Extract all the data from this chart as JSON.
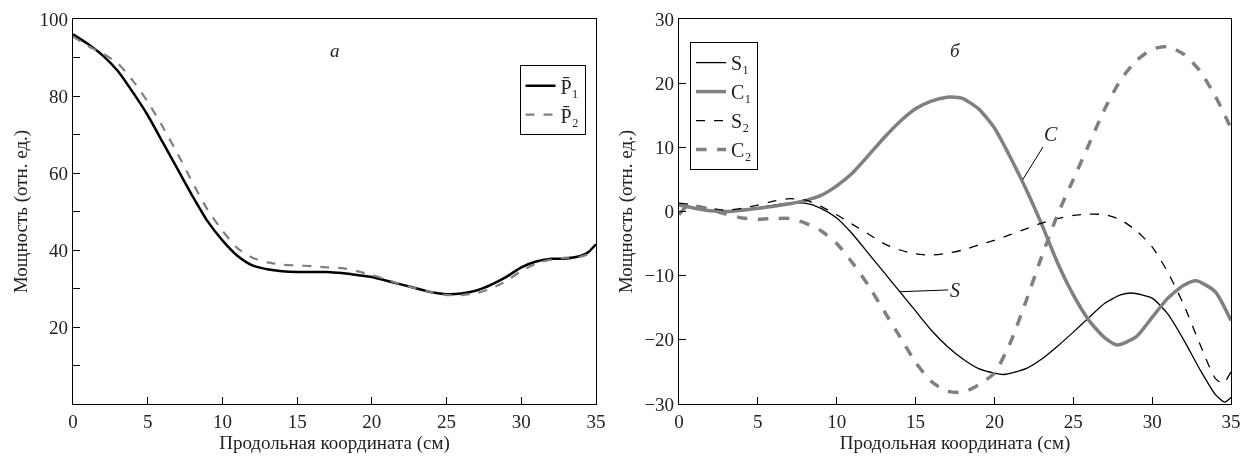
{
  "chart_data": [
    {
      "type": "line",
      "title": "а",
      "xlabel": "Продольная координата (см)",
      "ylabel": "Мощность (отн. ед.)",
      "xlim": [
        0,
        35
      ],
      "ylim": [
        0,
        100
      ],
      "xticks": [
        0,
        5,
        10,
        15,
        20,
        25,
        30,
        35
      ],
      "yticks": [
        {
          "value": 10,
          "label": null
        },
        20,
        {
          "value": 30,
          "label": null
        },
        40,
        {
          "value": 50,
          "label": null
        },
        60,
        {
          "value": 70,
          "label": null
        },
        80,
        {
          "value": 90,
          "label": null
        },
        100
      ],
      "legend": "top right",
      "series": [
        {
          "name": "P̄₁",
          "color": "#000000",
          "line_style": "solid",
          "x": [
            0,
            1,
            2,
            3,
            4,
            5,
            6,
            7,
            8,
            9,
            10,
            11,
            12,
            13,
            14,
            15,
            17,
            18,
            19,
            20,
            21,
            22,
            23,
            24,
            25,
            26,
            27,
            28,
            29,
            30,
            31,
            32,
            33,
            34,
            34.5,
            35
          ],
          "values": [
            96,
            93.5,
            90.5,
            86.5,
            81,
            75,
            68,
            61,
            54,
            47.5,
            42.5,
            38.5,
            36,
            35,
            34.5,
            34.3,
            34.3,
            34,
            33.5,
            33,
            32,
            31,
            30,
            29,
            28.5,
            28.7,
            29.5,
            31,
            33,
            35.5,
            37,
            37.7,
            37.8,
            38.5,
            39.5,
            41.5
          ]
        },
        {
          "name": "P̄₂",
          "color": "#808080",
          "line_style": "dashed",
          "x": [
            0,
            1,
            2,
            3,
            4,
            5,
            6,
            7,
            8,
            9,
            10,
            11,
            12,
            13,
            14,
            15,
            16,
            17,
            18,
            19,
            20,
            21,
            22,
            23,
            24,
            25,
            26,
            27,
            28,
            29,
            30,
            31,
            32,
            33,
            34,
            35
          ],
          "values": [
            95.5,
            93,
            91,
            88.5,
            84,
            78.5,
            72,
            65,
            57.5,
            50.5,
            45,
            40.5,
            38,
            36.8,
            36.2,
            36,
            35.8,
            35.5,
            35.3,
            34.5,
            33.5,
            32.3,
            31,
            30,
            29,
            28.3,
            28.3,
            28.8,
            30,
            32,
            34.5,
            36.5,
            37.5,
            38,
            38.3,
            39.5
          ]
        }
      ]
    },
    {
      "type": "line",
      "title": "б",
      "xlabel": "Продольная координата (см)",
      "ylabel": "Мощность (отн. ед.)",
      "xlim": [
        0,
        35
      ],
      "ylim": [
        -30,
        30
      ],
      "xticks": [
        0,
        5,
        10,
        15,
        20,
        25,
        30,
        35
      ],
      "yticks": [
        -30,
        -20,
        -10,
        0,
        10,
        20,
        30
      ],
      "legend": "top left",
      "annotations": [
        {
          "text": "C",
          "x": 21.8,
          "y": 5
        },
        {
          "text": "S",
          "x": 14,
          "y": -12.5
        }
      ],
      "series": [
        {
          "name": "S₁",
          "color": "#000000",
          "line_style": "solid",
          "x": [
            0,
            1,
            2,
            3,
            4,
            5,
            6,
            7,
            8,
            9,
            10,
            11,
            12,
            13,
            14,
            15,
            16,
            17,
            18,
            19,
            20,
            20.6,
            22,
            23,
            24,
            25,
            26,
            27,
            28,
            28.7,
            30,
            31,
            32,
            33,
            34,
            34.6,
            35
          ],
          "values": [
            1,
            0.5,
            0.1,
            0,
            0.3,
            0.6,
            1,
            1.3,
            1.3,
            0.5,
            -1,
            -3.5,
            -6.5,
            -9.5,
            -12.5,
            -15.5,
            -18.5,
            -21,
            -23,
            -24.5,
            -25.2,
            -25.4,
            -24.5,
            -23,
            -21,
            -18.8,
            -16.5,
            -14.3,
            -13,
            -12.7,
            -13.5,
            -16,
            -20,
            -24.5,
            -28.5,
            -29.7,
            -29
          ]
        },
        {
          "name": "C₁",
          "color": "#808080",
          "line_style": "solid",
          "x": [
            0,
            1,
            2,
            3,
            4,
            5,
            6,
            7,
            8,
            9,
            10,
            11,
            12,
            13,
            14,
            15,
            16,
            17,
            17.5,
            18,
            19,
            20,
            21,
            22,
            23,
            24,
            25,
            26,
            27,
            27.8,
            29,
            30,
            31,
            32,
            32.8,
            34,
            35
          ],
          "values": [
            1,
            0.5,
            0.1,
            0,
            0.2,
            0.5,
            0.8,
            1.2,
            1.7,
            2.5,
            4,
            6,
            8.7,
            11.5,
            14,
            16,
            17.2,
            17.8,
            17.8,
            17.6,
            16,
            13,
            8.5,
            3.5,
            -2,
            -8,
            -13,
            -17,
            -19.7,
            -20.8,
            -19.5,
            -16.5,
            -13.5,
            -11.5,
            -10.8,
            -12.5,
            -17
          ]
        },
        {
          "name": "S₂",
          "color": "#000000",
          "line_style": "dashed",
          "x": [
            0,
            1,
            2,
            3,
            4,
            5,
            6,
            7,
            8,
            9,
            10,
            11,
            12,
            13,
            14,
            15,
            16,
            17,
            18,
            19,
            20,
            21,
            22,
            23,
            24,
            25,
            26,
            27,
            28,
            29,
            30,
            31,
            32,
            33,
            34,
            34.5,
            35
          ],
          "values": [
            1.3,
            1,
            0.5,
            0.2,
            0.5,
            1,
            1.6,
            2,
            1.8,
            0.8,
            -0.5,
            -2,
            -3.5,
            -5,
            -6,
            -6.6,
            -6.8,
            -6.5,
            -6,
            -5.2,
            -4.5,
            -3.6,
            -2.7,
            -1.8,
            -1.1,
            -0.6,
            -0.4,
            -0.5,
            -1.3,
            -3,
            -5.5,
            -9.5,
            -14.5,
            -20.5,
            -26,
            -26.8,
            -25
          ]
        },
        {
          "name": "C₂",
          "color": "#808080",
          "line_style": "dashed",
          "x": [
            0,
            0.5,
            1,
            2,
            3,
            4,
            5,
            6,
            7,
            8,
            9,
            10,
            11,
            12,
            13,
            14,
            15,
            16,
            17,
            18,
            19,
            20,
            21,
            22,
            23,
            24,
            25,
            26,
            27,
            28,
            29,
            30,
            31,
            32,
            33,
            34,
            35
          ],
          "values": [
            -0.5,
            0.8,
            0.8,
            0.3,
            -0.4,
            -1,
            -1.2,
            -1.1,
            -1.1,
            -1.8,
            -3,
            -5,
            -8,
            -11.5,
            -15.5,
            -19.5,
            -23.5,
            -26.5,
            -28,
            -28.2,
            -27,
            -25.2,
            -20.5,
            -14,
            -7,
            -0.5,
            5,
            10.5,
            16,
            20.5,
            23.5,
            25.3,
            25.7,
            24.5,
            22,
            18,
            13
          ]
        }
      ]
    }
  ]
}
